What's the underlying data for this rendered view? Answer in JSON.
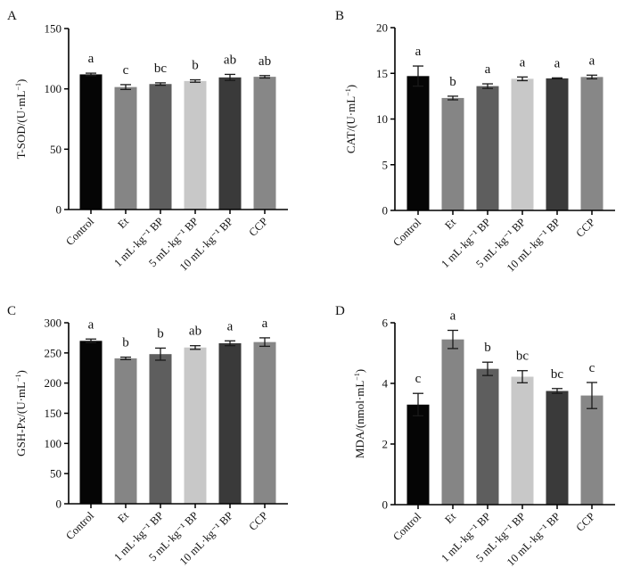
{
  "chart_data": [
    {
      "type": "bar",
      "panel_label": "A",
      "ylabel": "T-SOD/(U·mL",
      "ylabel_sup": "−1",
      "ylabel_close": ")",
      "ylim": [
        0,
        150
      ],
      "yticks": [
        0,
        50,
        100,
        150
      ],
      "categories": [
        "Control",
        "Et",
        "1 mL·kg⁻¹ BP",
        "5 mL·kg⁻¹ BP",
        "10 mL·kg⁻¹ BP",
        "CCP"
      ],
      "values": [
        112,
        101.5,
        104,
        106.5,
        109.5,
        110
      ],
      "errors": [
        1,
        2,
        1,
        1,
        2.5,
        1
      ],
      "significance": [
        "a",
        "c",
        "bc",
        "b",
        "ab",
        "ab"
      ]
    },
    {
      "type": "bar",
      "panel_label": "B",
      "ylabel": "CAT/(U·mL",
      "ylabel_sup": "−1",
      "ylabel_close": ")",
      "ylim": [
        0,
        20
      ],
      "yticks": [
        0,
        5,
        10,
        15,
        20
      ],
      "categories": [
        "Control",
        "Et",
        "1 mL·kg⁻¹ BP",
        "5 mL·kg⁻¹ BP",
        "10 mL·kg⁻¹ BP",
        "CCP"
      ],
      "values": [
        14.7,
        12.3,
        13.6,
        14.4,
        14.45,
        14.6
      ],
      "errors": [
        1.1,
        0.2,
        0.25,
        0.2,
        0.05,
        0.2
      ],
      "significance": [
        "a",
        "b",
        "a",
        "a",
        "a",
        "a"
      ]
    },
    {
      "type": "bar",
      "panel_label": "C",
      "ylabel": "GSH-Px/(U·mL",
      "ylabel_sup": "−1",
      "ylabel_close": ")",
      "ylim": [
        0,
        300
      ],
      "yticks": [
        0,
        50,
        100,
        150,
        200,
        250,
        300
      ],
      "categories": [
        "Control",
        "Et",
        "1 mL·kg⁻¹ BP",
        "5 mL·kg⁻¹ BP",
        "10 mL·kg⁻¹ BP",
        "CCP"
      ],
      "values": [
        270,
        241,
        248,
        259,
        266,
        268
      ],
      "errors": [
        3,
        2,
        10,
        3,
        4,
        7
      ],
      "significance": [
        "a",
        "b",
        "b",
        "ab",
        "a",
        "a"
      ]
    },
    {
      "type": "bar",
      "panel_label": "D",
      "ylabel": "MDA/(nmol·mL",
      "ylabel_sup": "−1",
      "ylabel_close": ")",
      "ylim": [
        0,
        6
      ],
      "yticks": [
        0,
        2,
        4,
        6
      ],
      "categories": [
        "Control",
        "Et",
        "1 mL·kg⁻¹ BP",
        "5 mL·kg⁻¹ BP",
        "10 mL·kg⁻¹ BP",
        "CCP"
      ],
      "values": [
        3.3,
        5.45,
        4.48,
        4.22,
        3.75,
        3.6
      ],
      "errors": [
        0.37,
        0.3,
        0.22,
        0.2,
        0.08,
        0.43
      ],
      "significance": [
        "c",
        "a",
        "b",
        "bc",
        "bc",
        "c"
      ]
    }
  ],
  "bar_colors": [
    "#050505",
    "#858585",
    "#5e5e5e",
    "#c8c8c8",
    "#3a3a3a",
    "#878787"
  ]
}
